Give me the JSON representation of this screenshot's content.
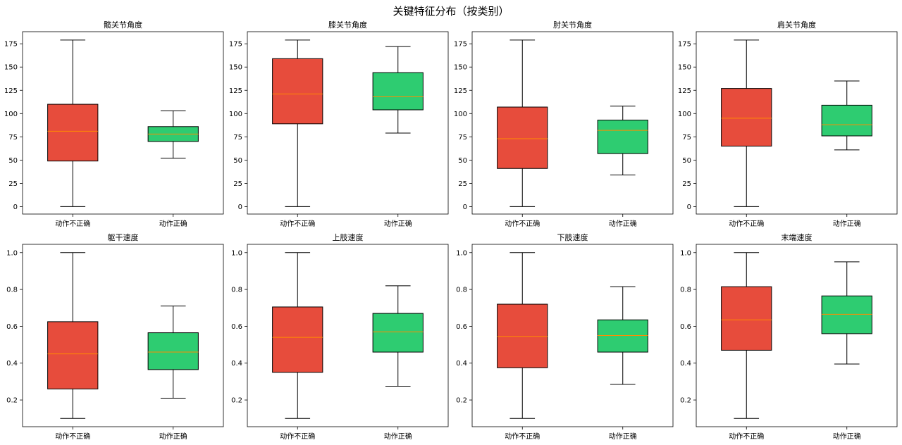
{
  "figure": {
    "title": "关键特征分布（按类别）"
  },
  "colors": {
    "incorrect": "#e74c3c",
    "correct": "#2ecc71",
    "median": "#ff8c00",
    "line": "#000000"
  },
  "chart_data": [
    {
      "type": "box",
      "title": "髋关节角度",
      "categories": [
        "动作不正确",
        "动作正确"
      ],
      "ylim": [
        -8,
        188
      ],
      "yticks": [
        0,
        25,
        50,
        75,
        100,
        125,
        150,
        175
      ],
      "boxes": [
        {
          "category": "动作不正确",
          "whislo": 0,
          "q1": 49,
          "median": 81,
          "q3": 110,
          "whishi": 179
        },
        {
          "category": "动作正确",
          "whislo": 52,
          "q1": 70,
          "median": 78,
          "q3": 86,
          "whishi": 103
        }
      ]
    },
    {
      "type": "box",
      "title": "膝关节角度",
      "categories": [
        "动作不正确",
        "动作正确"
      ],
      "ylim": [
        -8,
        188
      ],
      "yticks": [
        0,
        25,
        50,
        75,
        100,
        125,
        150,
        175
      ],
      "boxes": [
        {
          "category": "动作不正确",
          "whislo": 0,
          "q1": 89,
          "median": 121,
          "q3": 159,
          "whishi": 179
        },
        {
          "category": "动作正确",
          "whislo": 79,
          "q1": 104,
          "median": 118,
          "q3": 144,
          "whishi": 172
        }
      ]
    },
    {
      "type": "box",
      "title": "肘关节角度",
      "categories": [
        "动作不正确",
        "动作正确"
      ],
      "ylim": [
        -8,
        188
      ],
      "yticks": [
        0,
        25,
        50,
        75,
        100,
        125,
        150,
        175
      ],
      "boxes": [
        {
          "category": "动作不正确",
          "whislo": 0,
          "q1": 41,
          "median": 73,
          "q3": 107,
          "whishi": 179
        },
        {
          "category": "动作正确",
          "whislo": 34,
          "q1": 57,
          "median": 82,
          "q3": 93,
          "whishi": 108
        }
      ]
    },
    {
      "type": "box",
      "title": "肩关节角度",
      "categories": [
        "动作不正确",
        "动作正确"
      ],
      "ylim": [
        -8,
        188
      ],
      "yticks": [
        0,
        25,
        50,
        75,
        100,
        125,
        150,
        175
      ],
      "boxes": [
        {
          "category": "动作不正确",
          "whislo": 0,
          "q1": 65,
          "median": 95,
          "q3": 127,
          "whishi": 179
        },
        {
          "category": "动作正确",
          "whislo": 61,
          "q1": 76,
          "median": 88,
          "q3": 109,
          "whishi": 135
        }
      ]
    },
    {
      "type": "box",
      "title": "躯干速度",
      "categories": [
        "动作不正确",
        "动作正确"
      ],
      "ylim": [
        0.055,
        1.045
      ],
      "yticks": [
        0.2,
        0.4,
        0.6,
        0.8,
        1.0
      ],
      "boxes": [
        {
          "category": "动作不正确",
          "whislo": 0.1,
          "q1": 0.26,
          "median": 0.45,
          "q3": 0.625,
          "whishi": 1.0
        },
        {
          "category": "动作正确",
          "whislo": 0.21,
          "q1": 0.365,
          "median": 0.46,
          "q3": 0.565,
          "whishi": 0.71
        }
      ]
    },
    {
      "type": "box",
      "title": "上肢速度",
      "categories": [
        "动作不正确",
        "动作正确"
      ],
      "ylim": [
        0.055,
        1.045
      ],
      "yticks": [
        0.2,
        0.4,
        0.6,
        0.8,
        1.0
      ],
      "boxes": [
        {
          "category": "动作不正确",
          "whislo": 0.1,
          "q1": 0.35,
          "median": 0.54,
          "q3": 0.705,
          "whishi": 1.0
        },
        {
          "category": "动作正确",
          "whislo": 0.275,
          "q1": 0.46,
          "median": 0.57,
          "q3": 0.67,
          "whishi": 0.82
        }
      ]
    },
    {
      "type": "box",
      "title": "下肢速度",
      "categories": [
        "动作不正确",
        "动作正确"
      ],
      "ylim": [
        0.055,
        1.045
      ],
      "yticks": [
        0.2,
        0.4,
        0.6,
        0.8,
        1.0
      ],
      "boxes": [
        {
          "category": "动作不正确",
          "whislo": 0.1,
          "q1": 0.375,
          "median": 0.545,
          "q3": 0.72,
          "whishi": 1.0
        },
        {
          "category": "动作正确",
          "whislo": 0.285,
          "q1": 0.46,
          "median": 0.55,
          "q3": 0.635,
          "whishi": 0.815
        }
      ]
    },
    {
      "type": "box",
      "title": "末端速度",
      "categories": [
        "动作不正确",
        "动作正确"
      ],
      "ylim": [
        0.055,
        1.045
      ],
      "yticks": [
        0.2,
        0.4,
        0.6,
        0.8,
        1.0
      ],
      "boxes": [
        {
          "category": "动作不正确",
          "whislo": 0.1,
          "q1": 0.47,
          "median": 0.635,
          "q3": 0.815,
          "whishi": 1.0
        },
        {
          "category": "动作正确",
          "whislo": 0.395,
          "q1": 0.56,
          "median": 0.665,
          "q3": 0.765,
          "whishi": 0.95
        }
      ]
    }
  ]
}
